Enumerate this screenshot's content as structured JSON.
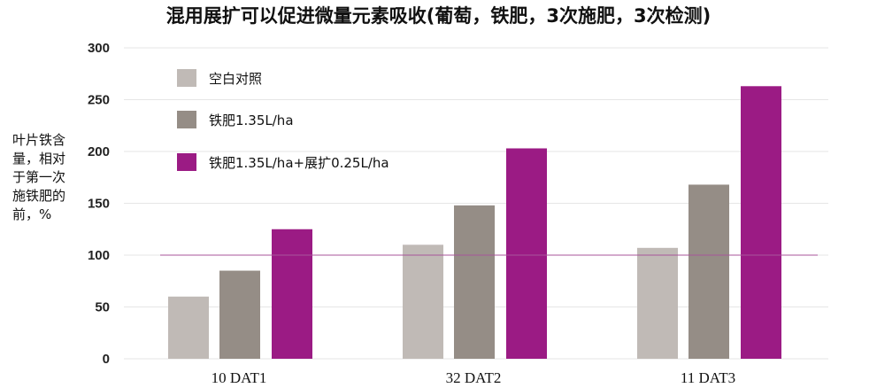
{
  "chart_data": {
    "type": "bar",
    "title": "混用展扩可以促进微量元素吸收(葡萄，铁肥，3次施肥，3次检测)",
    "ylabel": "叶片铁含\n量，相对\n于第一次\n施铁肥的\n前，%",
    "xlabel": "",
    "categories": [
      "10 DAT1",
      "32 DAT2",
      "11 DAT3"
    ],
    "yticks": [
      "0",
      "50",
      "100",
      "150",
      "200",
      "250",
      "300"
    ],
    "ylim": [
      0,
      300
    ],
    "reference_line": 100,
    "grid": true,
    "legend_position": "top-left",
    "series": [
      {
        "name": "空白对照",
        "color": "#c0bab6",
        "values": [
          60,
          110,
          107
        ]
      },
      {
        "name": "铁肥1.35L/ha",
        "color": "#958d86",
        "values": [
          85,
          148,
          168
        ]
      },
      {
        "name": "铁肥1.35L/ha+展扩0.25L/ha",
        "color": "#9b1b84",
        "values": [
          125,
          203,
          263
        ]
      }
    ],
    "reference_line_color": "#a8559b"
  }
}
